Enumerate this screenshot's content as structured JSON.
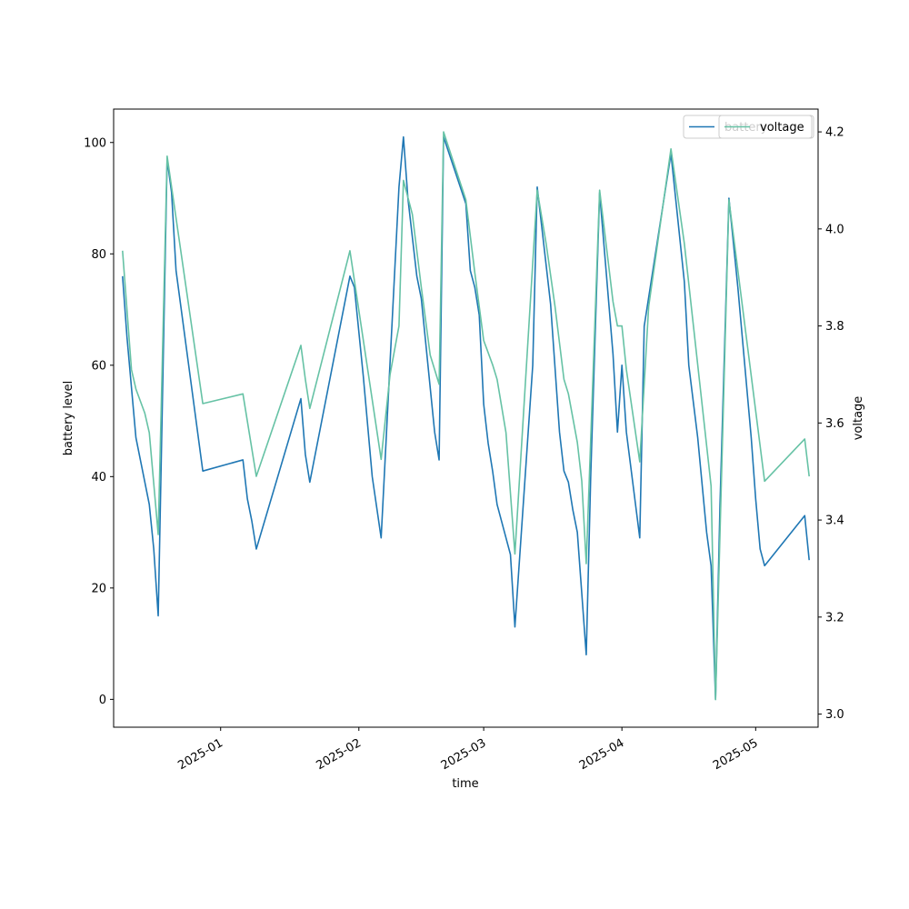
{
  "chart_data": {
    "type": "line",
    "xlabel": "time",
    "ylabel": "battery level",
    "y2label": "voltage",
    "x_range": [
      "2024-12-08",
      "2025-05-15"
    ],
    "ylim": [
      -5,
      106
    ],
    "y2lim": [
      2.973,
      4.247
    ],
    "x_ticks": [
      "2025-01",
      "2025-02",
      "2025-03",
      "2025-04",
      "2025-05"
    ],
    "y_ticks": [
      0,
      20,
      40,
      60,
      80,
      100
    ],
    "y2_ticks": [
      "3.0",
      "3.2",
      "3.4",
      "3.6",
      "3.8",
      "4.0",
      "4.2"
    ],
    "legends": [
      {
        "placement": "top-right",
        "entries": [
          "battery"
        ]
      },
      {
        "placement": "top-right",
        "entries": [
          "voltage"
        ]
      }
    ],
    "series": [
      {
        "name": "battery",
        "axis": "left",
        "color": "#1f77b4",
        "points": [
          [
            "2024-12-10",
            76
          ],
          [
            "2024-12-11",
            65
          ],
          [
            "2024-12-12",
            56
          ],
          [
            "2024-12-13",
            47
          ],
          [
            "2024-12-15",
            39
          ],
          [
            "2024-12-16",
            35
          ],
          [
            "2024-12-17",
            27
          ],
          [
            "2024-12-18",
            15
          ],
          [
            "2024-12-20",
            97
          ],
          [
            "2024-12-21",
            91
          ],
          [
            "2024-12-22",
            77
          ],
          [
            "2024-12-28",
            41
          ],
          [
            "2025-01-06",
            43
          ],
          [
            "2025-01-07",
            36
          ],
          [
            "2025-01-08",
            32
          ],
          [
            "2025-01-09",
            27
          ],
          [
            "2025-01-19",
            54
          ],
          [
            "2025-01-20",
            44
          ],
          [
            "2025-01-21",
            39
          ],
          [
            "2025-01-30",
            76
          ],
          [
            "2025-01-31",
            74
          ],
          [
            "2025-02-02",
            58
          ],
          [
            "2025-02-04",
            40
          ],
          [
            "2025-02-06",
            29
          ],
          [
            "2025-02-10",
            92
          ],
          [
            "2025-02-11",
            101
          ],
          [
            "2025-02-12",
            90
          ],
          [
            "2025-02-14",
            76
          ],
          [
            "2025-02-15",
            72
          ],
          [
            "2025-02-18",
            48
          ],
          [
            "2025-02-19",
            43
          ],
          [
            "2025-02-20",
            101
          ],
          [
            "2025-02-25",
            89
          ],
          [
            "2025-02-26",
            77
          ],
          [
            "2025-02-27",
            74
          ],
          [
            "2025-02-28",
            69
          ],
          [
            "2025-03-01",
            53
          ],
          [
            "2025-03-02",
            46
          ],
          [
            "2025-03-03",
            41
          ],
          [
            "2025-03-04",
            35
          ],
          [
            "2025-03-07",
            26
          ],
          [
            "2025-03-08",
            13
          ],
          [
            "2025-03-12",
            60
          ],
          [
            "2025-03-13",
            92
          ],
          [
            "2025-03-14",
            85
          ],
          [
            "2025-03-16",
            71
          ],
          [
            "2025-03-18",
            48
          ],
          [
            "2025-03-19",
            41
          ],
          [
            "2025-03-20",
            39
          ],
          [
            "2025-03-21",
            34
          ],
          [
            "2025-03-22",
            30
          ],
          [
            "2025-03-24",
            8
          ],
          [
            "2025-03-25",
            40
          ],
          [
            "2025-03-27",
            91
          ],
          [
            "2025-03-30",
            62
          ],
          [
            "2025-03-31",
            48
          ],
          [
            "2025-04-01",
            60
          ],
          [
            "2025-04-02",
            48
          ],
          [
            "2025-04-05",
            29
          ],
          [
            "2025-04-06",
            67
          ],
          [
            "2025-04-12",
            98
          ],
          [
            "2025-04-15",
            75
          ],
          [
            "2025-04-16",
            60
          ],
          [
            "2025-04-18",
            47
          ],
          [
            "2025-04-20",
            30
          ],
          [
            "2025-04-21",
            24
          ],
          [
            "2025-04-22",
            0
          ],
          [
            "2025-04-23",
            35
          ],
          [
            "2025-04-25",
            90
          ],
          [
            "2025-04-27",
            74
          ],
          [
            "2025-04-30",
            47
          ],
          [
            "2025-05-01",
            36
          ],
          [
            "2025-05-02",
            27
          ],
          [
            "2025-05-03",
            24
          ],
          [
            "2025-05-12",
            33
          ],
          [
            "2025-05-13",
            25
          ]
        ]
      },
      {
        "name": "voltage",
        "axis": "right",
        "color": "#66c2a5",
        "points": [
          [
            "2024-12-10",
            3.955
          ],
          [
            "2024-12-12",
            3.71
          ],
          [
            "2024-12-13",
            3.67
          ],
          [
            "2024-12-15",
            3.62
          ],
          [
            "2024-12-16",
            3.58
          ],
          [
            "2024-12-18",
            3.37
          ],
          [
            "2024-12-20",
            4.15
          ],
          [
            "2024-12-28",
            3.64
          ],
          [
            "2025-01-06",
            3.66
          ],
          [
            "2025-01-09",
            3.49
          ],
          [
            "2025-01-19",
            3.76
          ],
          [
            "2025-01-20",
            3.69
          ],
          [
            "2025-01-21",
            3.63
          ],
          [
            "2025-01-30",
            3.955
          ],
          [
            "2025-02-06",
            3.525
          ],
          [
            "2025-02-08",
            3.7
          ],
          [
            "2025-02-10",
            3.8
          ],
          [
            "2025-02-11",
            4.1
          ],
          [
            "2025-02-13",
            4.03
          ],
          [
            "2025-02-15",
            3.88
          ],
          [
            "2025-02-17",
            3.74
          ],
          [
            "2025-02-19",
            3.68
          ],
          [
            "2025-02-20",
            4.2
          ],
          [
            "2025-02-25",
            4.06
          ],
          [
            "2025-02-27",
            3.91
          ],
          [
            "2025-03-01",
            3.77
          ],
          [
            "2025-03-03",
            3.72
          ],
          [
            "2025-03-04",
            3.69
          ],
          [
            "2025-03-06",
            3.58
          ],
          [
            "2025-03-08",
            3.33
          ],
          [
            "2025-03-13",
            4.08
          ],
          [
            "2025-03-15",
            3.97
          ],
          [
            "2025-03-17",
            3.84
          ],
          [
            "2025-03-19",
            3.69
          ],
          [
            "2025-03-20",
            3.66
          ],
          [
            "2025-03-22",
            3.56
          ],
          [
            "2025-03-23",
            3.48
          ],
          [
            "2025-03-24",
            3.31
          ],
          [
            "2025-03-27",
            4.08
          ],
          [
            "2025-03-30",
            3.85
          ],
          [
            "2025-03-31",
            3.8
          ],
          [
            "2025-04-01",
            3.8
          ],
          [
            "2025-04-02",
            3.71
          ],
          [
            "2025-04-05",
            3.52
          ],
          [
            "2025-04-07",
            3.84
          ],
          [
            "2025-04-12",
            4.165
          ],
          [
            "2025-04-15",
            3.97
          ],
          [
            "2025-04-21",
            3.47
          ],
          [
            "2025-04-22",
            3.03
          ],
          [
            "2025-04-25",
            4.06
          ],
          [
            "2025-05-03",
            3.48
          ],
          [
            "2025-05-12",
            3.567
          ],
          [
            "2025-05-13",
            3.49
          ]
        ]
      }
    ]
  }
}
